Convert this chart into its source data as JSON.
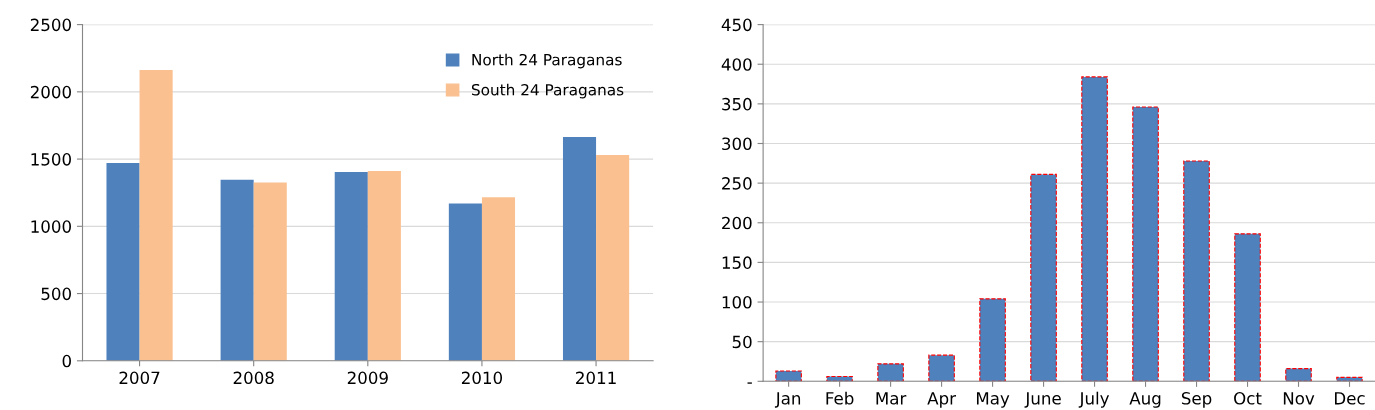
{
  "chart_data": [
    {
      "type": "bar",
      "categories": [
        "2007",
        "2008",
        "2009",
        "2010",
        "2011"
      ],
      "series": [
        {
          "name": "North 24 Paraganas",
          "color": "#4f81bd",
          "values": [
            1470,
            1346,
            1404,
            1170,
            1664
          ]
        },
        {
          "name": "South 24 Paraganas",
          "color": "#fac090",
          "values": [
            2162,
            1326,
            1411,
            1216,
            1531
          ]
        }
      ],
      "ylim": [
        0,
        2500
      ],
      "yticks": [
        0,
        500,
        1000,
        1500,
        2000,
        2500
      ],
      "grid": "y",
      "legend": "top right"
    },
    {
      "type": "bar",
      "categories": [
        "Jan",
        "Feb",
        "Mar",
        "Apr",
        "May",
        "June",
        "July",
        "Aug",
        "Sep",
        "Oct",
        "Nov",
        "Dec"
      ],
      "series": [
        {
          "color": "#4f81bd",
          "line_style": "dashed",
          "values": [
            13,
            6,
            22,
            33,
            104,
            261,
            384,
            346,
            278,
            186,
            16,
            5
          ]
        }
      ],
      "ylim": [
        0,
        450
      ],
      "yticks": [
        {
          "value": 0,
          "label": "-"
        },
        50,
        100,
        150,
        200,
        250,
        300,
        350,
        400,
        450
      ],
      "grid": "y"
    }
  ]
}
